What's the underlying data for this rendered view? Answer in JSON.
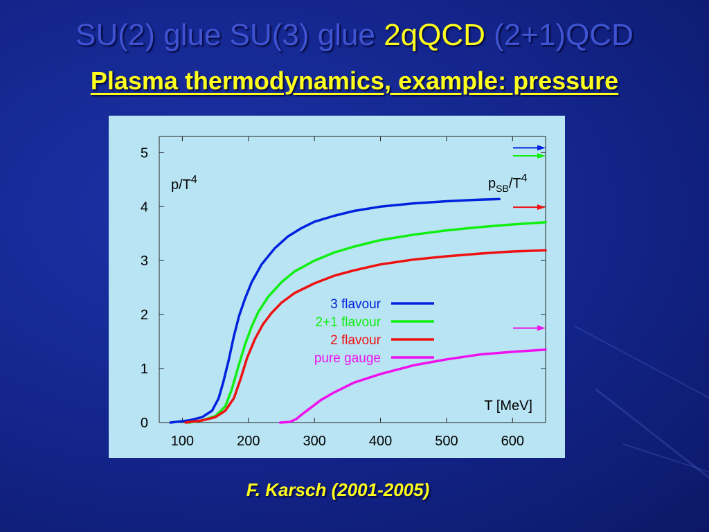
{
  "header": {
    "title_part1": "SU(2) glue SU(3) glue ",
    "title_highlight": "2qQCD",
    "title_part2": " (2+1)QCD",
    "subtitle": "Plasma thermodynamics, example: pressure"
  },
  "footer": {
    "credit": "F. Karsch (2001-2005)"
  },
  "colors": {
    "background": "#13248a",
    "title": "#3f53d2",
    "highlight": "#ffff1e",
    "panel": "#b9e4f3"
  },
  "chart_data": {
    "type": "line",
    "ylabel_main": "p/T",
    "ylabel_sup": "4",
    "sb_label_main": "p",
    "sb_label_sub": "SB",
    "sb_label_mid": "/T",
    "sb_label_sup": "4",
    "xlabel": "T [MeV]",
    "xlim": [
      65,
      650
    ],
    "ylim": [
      0,
      5.3
    ],
    "xticks": [
      100,
      200,
      300,
      400,
      500,
      600
    ],
    "yticks": [
      0,
      1,
      2,
      3,
      4,
      5
    ],
    "grid": false,
    "legend_position": "center",
    "series": [
      {
        "name": "3 flavour",
        "color": "#0022dd",
        "x": [
          82,
          110,
          130,
          145,
          155,
          162,
          170,
          178,
          186,
          195,
          205,
          220,
          240,
          260,
          280,
          300,
          330,
          360,
          400,
          450,
          500,
          550,
          580
        ],
        "y": [
          0,
          0.04,
          0.1,
          0.22,
          0.45,
          0.75,
          1.15,
          1.6,
          1.98,
          2.3,
          2.6,
          2.93,
          3.23,
          3.45,
          3.6,
          3.72,
          3.83,
          3.92,
          4.0,
          4.06,
          4.1,
          4.13,
          4.14
        ],
        "sb_limit": 5.09
      },
      {
        "name": "2+1 flavour",
        "color": "#11ee11",
        "x": [
          110,
          130,
          150,
          165,
          175,
          185,
          195,
          205,
          215,
          230,
          250,
          270,
          300,
          330,
          360,
          400,
          450,
          500,
          550,
          600,
          650
        ],
        "y": [
          0,
          0.04,
          0.12,
          0.3,
          0.62,
          1.05,
          1.45,
          1.78,
          2.05,
          2.33,
          2.6,
          2.8,
          3.0,
          3.15,
          3.26,
          3.38,
          3.48,
          3.56,
          3.62,
          3.67,
          3.71
        ],
        "sb_limit": 4.94
      },
      {
        "name": "2 flavour",
        "color": "#ee1111",
        "x": [
          105,
          130,
          150,
          165,
          178,
          188,
          198,
          210,
          222,
          235,
          250,
          270,
          300,
          330,
          360,
          400,
          450,
          500,
          550,
          600,
          650
        ],
        "y": [
          0,
          0.04,
          0.1,
          0.22,
          0.45,
          0.8,
          1.2,
          1.55,
          1.82,
          2.03,
          2.22,
          2.4,
          2.58,
          2.72,
          2.82,
          2.93,
          3.02,
          3.08,
          3.13,
          3.17,
          3.19
        ],
        "sb_limit": 3.99
      },
      {
        "name": "pure gauge",
        "color": "#ee11ee",
        "x": [
          248,
          262,
          272,
          282,
          295,
          310,
          330,
          360,
          400,
          450,
          500,
          550,
          600,
          650
        ],
        "y": [
          0,
          0.01,
          0.06,
          0.16,
          0.28,
          0.42,
          0.56,
          0.74,
          0.9,
          1.06,
          1.17,
          1.26,
          1.31,
          1.35
        ],
        "sb_limit": 1.75
      }
    ]
  }
}
